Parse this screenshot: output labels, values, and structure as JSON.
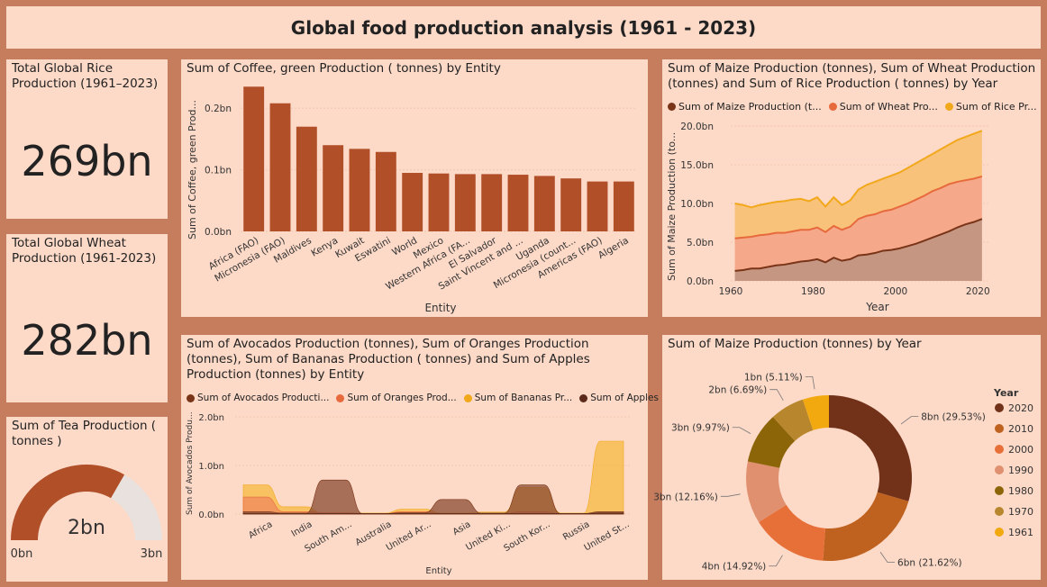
{
  "page_title": "Global food production analysis (1961 - 2023)",
  "rice_kpi": {
    "label": "Total Global Rice Production (1961–2023)",
    "value": "269bn"
  },
  "wheat_kpi": {
    "label": "Total Global Wheat Production (1961-2023)",
    "value": "282bn"
  },
  "tea_gauge": {
    "label": "Sum of Tea Production ( tonnes )",
    "value": "2bn",
    "min": "0bn",
    "max": "3bn",
    "fill_fraction": 0.667,
    "fill_color": "#b14f29",
    "track_color": "#e8e1dd"
  },
  "chart_data": [
    {
      "type": "bar",
      "title": "Sum of Coffee, green Production ( tonnes) by Entity",
      "xlabel": "Entity",
      "ylabel": "Sum of Coffee, green Prod...",
      "categories": [
        "Africa (FAO)",
        "Micronesia (FAO)",
        "Maldives",
        "Kenya",
        "Kuwait",
        "Eswatini",
        "World",
        "Mexico",
        "Western Africa (FA...",
        "El Salvador",
        "Saint Vincent and ...",
        "Uganda",
        "Micronesia (count...",
        "Americas (FAO)",
        "Algeria"
      ],
      "values": [
        0.235,
        0.208,
        0.17,
        0.14,
        0.134,
        0.129,
        0.095,
        0.094,
        0.093,
        0.093,
        0.092,
        0.09,
        0.086,
        0.081,
        0.081
      ],
      "ylim": [
        0,
        0.25
      ],
      "yticks": [
        "0.0bn",
        "0.1bn",
        "0.2bn"
      ],
      "color": "#b14f29"
    },
    {
      "type": "area",
      "title": "Sum of Maize Production (tonnes), Sum of Wheat Production (tonnes) and Sum of Rice Production ( tonnes) by Year",
      "xlabel": "Year",
      "ylabel": "Sum of Maize Production (to...",
      "xlim": [
        1960,
        2023
      ],
      "ylim": [
        0,
        20
      ],
      "xticks": [
        "1960",
        "1980",
        "2000",
        "2020"
      ],
      "yticks": [
        "0.0bn",
        "5.0bn",
        "10.0bn",
        "15.0bn",
        "20.0bn"
      ],
      "x": [
        1961,
        1963,
        1965,
        1967,
        1969,
        1971,
        1973,
        1975,
        1977,
        1979,
        1981,
        1983,
        1985,
        1987,
        1989,
        1991,
        1993,
        1995,
        1997,
        1999,
        2001,
        2003,
        2005,
        2007,
        2009,
        2011,
        2013,
        2015,
        2017,
        2019,
        2021
      ],
      "series": [
        {
          "name": "Sum of Maize Production (t...",
          "color": "#7a3418",
          "fill": "#c59783",
          "values": [
            1.3,
            1.4,
            1.6,
            1.6,
            1.8,
            2.0,
            2.1,
            2.3,
            2.5,
            2.6,
            2.8,
            2.4,
            3.0,
            2.6,
            2.8,
            3.3,
            3.4,
            3.6,
            3.9,
            4.0,
            4.2,
            4.5,
            4.8,
            5.2,
            5.6,
            6.0,
            6.4,
            6.9,
            7.3,
            7.6,
            8.0
          ]
        },
        {
          "name": "Sum of Wheat Pro...",
          "color": "#e76a3d",
          "fill": "#f5a88a",
          "values": [
            5.5,
            5.6,
            5.7,
            5.9,
            6.0,
            6.2,
            6.2,
            6.4,
            6.6,
            6.6,
            6.9,
            6.3,
            7.1,
            6.6,
            7.0,
            8.0,
            8.4,
            8.6,
            9.0,
            9.2,
            9.6,
            10.0,
            10.5,
            11.0,
            11.6,
            12.0,
            12.5,
            12.8,
            13.0,
            13.2,
            13.5
          ]
        },
        {
          "name": "Sum of Rice  Pr...",
          "color": "#f2a81b",
          "fill": "#f9c27a",
          "values": [
            10.0,
            9.8,
            9.5,
            9.8,
            10.0,
            10.2,
            10.3,
            10.5,
            10.6,
            10.3,
            10.8,
            9.6,
            10.8,
            9.8,
            10.4,
            11.8,
            12.4,
            12.8,
            13.2,
            13.6,
            14.0,
            14.6,
            15.2,
            15.8,
            16.4,
            17.0,
            17.6,
            18.2,
            18.6,
            19.0,
            19.4
          ]
        }
      ]
    },
    {
      "type": "area",
      "title": "Sum of Avocados Production (tonnes), Sum of Oranges Production (tonnes), Sum of Bananas Production ( tonnes) and Sum of Apples Production (tonnes) by Entity",
      "xlabel": "Entity",
      "ylabel": "Sum of Avocados Produ...",
      "ylim": [
        0,
        2.0
      ],
      "yticks": [
        "0.0bn",
        "1.0bn",
        "2.0bn"
      ],
      "categories": [
        "Africa",
        "India",
        "South Am...",
        "Australia",
        "United Ar...",
        "Asia",
        "United Ki...",
        "South Kor...",
        "Russia",
        "United St..."
      ],
      "series": [
        {
          "name": "Sum of Avocados Producti...",
          "color": "#7a3418",
          "fill": "#8a4a33",
          "values": [
            0.05,
            0.02,
            0.7,
            0.01,
            0.03,
            0.3,
            0.02,
            0.6,
            0.01,
            0.05
          ]
        },
        {
          "name": "Sum of Oranges  Prod...",
          "color": "#e76a3d",
          "fill": "#f08a5d",
          "values": [
            0.35,
            0.05,
            0.03,
            0.01,
            0.05,
            0.01,
            0.01,
            0.05,
            0.01,
            0.02
          ]
        },
        {
          "name": "Sum of Bananas  Pr...",
          "color": "#f2a81b",
          "fill": "#f5b840",
          "values": [
            0.6,
            0.15,
            0.01,
            0.02,
            0.1,
            0.02,
            0.04,
            0.55,
            0.02,
            1.5
          ]
        },
        {
          "name": "Sum of Apples ...",
          "color": "#5b2a1a",
          "fill": "#6a301c",
          "values": [
            0.01,
            0.01,
            0.01,
            0.01,
            0.01,
            0.01,
            0.01,
            0.01,
            0.01,
            0.02
          ]
        }
      ]
    },
    {
      "type": "pie",
      "title": "Sum of Maize Production (tonnes) by Year",
      "legend_title": "Year",
      "slices": [
        {
          "year": "2020",
          "label": "8bn (29.53%)",
          "value": 29.53,
          "color": "#723219"
        },
        {
          "year": "2010",
          "label": "6bn (21.62%)",
          "value": 21.62,
          "color": "#c0621f"
        },
        {
          "year": "2000",
          "label": "4bn (14.92%)",
          "value": 14.92,
          "color": "#e77038"
        },
        {
          "year": "1990",
          "label": "3bn (12.16%)",
          "value": 12.16,
          "color": "#e0906e"
        },
        {
          "year": "1980",
          "label": "3bn (9.97%)",
          "value": 9.97,
          "color": "#8d6509"
        },
        {
          "year": "1970",
          "label": "2bn (6.69%)",
          "value": 6.69,
          "color": "#b8872d"
        },
        {
          "year": "1961",
          "label": "1bn (5.11%)",
          "value": 5.11,
          "color": "#f2a80f"
        }
      ]
    }
  ]
}
